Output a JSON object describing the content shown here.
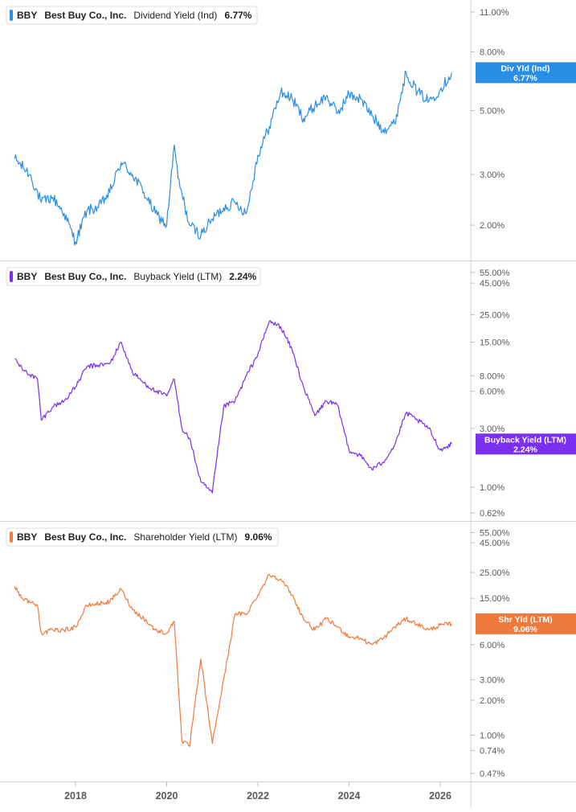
{
  "chart_data": [
    {
      "type": "line",
      "ticker": "BBY",
      "company": "Best Buy Co., Inc.",
      "metric": "Dividend Yield (Ind)",
      "latest_value": "6.77%",
      "badge_line1": "Div Yld (Ind)",
      "badge_line2": "6.77%",
      "color": "#2a8ee6",
      "scale": "log",
      "ylim": [
        1.65,
        11.5
      ],
      "yticks": [
        11,
        8,
        5,
        3,
        2
      ],
      "ytick_labels": [
        "11.00%",
        "8.00%",
        "5.00%",
        "3.00%",
        "2.00%"
      ],
      "x": [
        "2016-09",
        "2017-01",
        "2017-04",
        "2017-07",
        "2017-10",
        "2018-01",
        "2018-04",
        "2018-07",
        "2018-10",
        "2019-01",
        "2019-04",
        "2019-07",
        "2019-10",
        "2020-01",
        "2020-03",
        "2020-04",
        "2020-07",
        "2020-10",
        "2021-01",
        "2021-04",
        "2021-07",
        "2021-10",
        "2022-01",
        "2022-04",
        "2022-07",
        "2022-10",
        "2023-01",
        "2023-04",
        "2023-07",
        "2023-10",
        "2024-01",
        "2024-04",
        "2024-07",
        "2024-10",
        "2025-01",
        "2025-04",
        "2025-07",
        "2025-10",
        "2026-01",
        "2026-04"
      ],
      "values": [
        3.4,
        3.0,
        2.4,
        2.5,
        2.2,
        1.75,
        2.25,
        2.3,
        2.6,
        3.3,
        3.0,
        2.6,
        2.2,
        2.0,
        3.8,
        2.9,
        2.0,
        1.85,
        2.1,
        2.3,
        2.4,
        2.2,
        3.5,
        4.4,
        5.8,
        5.5,
        4.7,
        5.2,
        5.6,
        4.9,
        5.7,
        5.5,
        4.8,
        4.3,
        4.5,
        6.8,
        5.8,
        5.4,
        5.9,
        6.77
      ]
    },
    {
      "type": "line",
      "ticker": "BBY",
      "company": "Best Buy Co., Inc.",
      "metric": "Buyback Yield (LTM)",
      "latest_value": "2.24%",
      "badge_line1": "Buyback Yield (LTM)",
      "badge_line2": "2.24%",
      "color": "#7b2ff0",
      "scale": "log",
      "ylim": [
        0.62,
        60
      ],
      "yticks": [
        55,
        45,
        25,
        15,
        8,
        6,
        3,
        1,
        0.62
      ],
      "ytick_labels": [
        "55.00%",
        "45.00%",
        "25.00%",
        "15.00%",
        "8.00%",
        "6.00%",
        "3.00%",
        "1.00%",
        "0.62%"
      ],
      "x": [
        "2016-09",
        "2016-11",
        "2017-03",
        "2017-04",
        "2017-07",
        "2017-10",
        "2018-01",
        "2018-04",
        "2018-10",
        "2019-01",
        "2019-04",
        "2019-07",
        "2019-10",
        "2020-01",
        "2020-03",
        "2020-05",
        "2020-07",
        "2020-10",
        "2021-01",
        "2021-04",
        "2021-07",
        "2021-10",
        "2022-01",
        "2022-04",
        "2022-07",
        "2022-10",
        "2023-01",
        "2023-04",
        "2023-07",
        "2023-10",
        "2024-01",
        "2024-04",
        "2024-07",
        "2024-10",
        "2025-01",
        "2025-04",
        "2025-07",
        "2025-10",
        "2026-01",
        "2026-04"
      ],
      "values": [
        11.0,
        9.0,
        7.5,
        3.5,
        4.5,
        5.0,
        6.5,
        9.5,
        10.0,
        15.0,
        8.5,
        7.0,
        6.0,
        5.5,
        7.5,
        3.0,
        2.5,
        1.1,
        0.9,
        4.5,
        5.0,
        8.0,
        12.0,
        22.0,
        20.0,
        13.0,
        6.5,
        3.8,
        5.0,
        4.6,
        2.0,
        1.8,
        1.4,
        1.6,
        2.2,
        4.0,
        3.5,
        3.0,
        2.0,
        2.24
      ]
    },
    {
      "type": "line",
      "ticker": "BBY",
      "company": "Best Buy Co., Inc.",
      "metric": "Shareholder Yield (LTM)",
      "latest_value": "9.06%",
      "badge_line1": "Shr Yld (LTM)",
      "badge_line2": "9.06%",
      "color": "#f07a3c",
      "scale": "log",
      "ylim": [
        0.47,
        60
      ],
      "yticks": [
        55,
        45,
        25,
        15,
        6,
        3,
        2,
        1,
        0.74,
        0.47
      ],
      "ytick_labels": [
        "55.00%",
        "45.00%",
        "25.00%",
        "15.00%",
        "6.00%",
        "3.00%",
        "2.00%",
        "1.00%",
        "0.74%",
        "0.47%"
      ],
      "x": [
        "2016-09",
        "2016-11",
        "2017-03",
        "2017-04",
        "2017-07",
        "2017-10",
        "2018-01",
        "2018-04",
        "2018-10",
        "2019-01",
        "2019-04",
        "2019-07",
        "2019-10",
        "2020-01",
        "2020-03",
        "2020-05",
        "2020-07",
        "2020-10",
        "2021-01",
        "2021-04",
        "2021-07",
        "2021-10",
        "2022-01",
        "2022-04",
        "2022-07",
        "2022-10",
        "2023-01",
        "2023-04",
        "2023-07",
        "2023-10",
        "2024-01",
        "2024-04",
        "2024-07",
        "2024-10",
        "2025-01",
        "2025-04",
        "2025-07",
        "2025-10",
        "2026-01",
        "2026-04"
      ],
      "values": [
        19.0,
        15.0,
        13.0,
        7.5,
        8.0,
        8.0,
        8.5,
        13.0,
        14.0,
        18.0,
        12.0,
        10.0,
        8.0,
        7.5,
        9.5,
        0.9,
        0.8,
        4.5,
        0.85,
        3.0,
        11.0,
        11.0,
        16.0,
        24.0,
        22.0,
        16.0,
        10.0,
        8.0,
        10.0,
        8.5,
        7.0,
        6.8,
        6.0,
        6.8,
        8.5,
        10.0,
        9.0,
        8.0,
        8.8,
        9.06
      ]
    }
  ],
  "x_axis": {
    "labels": [
      "2018",
      "2020",
      "2022",
      "2024",
      "2026"
    ],
    "values": [
      "2018-01",
      "2020-01",
      "2022-01",
      "2024-01",
      "2026-01"
    ]
  }
}
